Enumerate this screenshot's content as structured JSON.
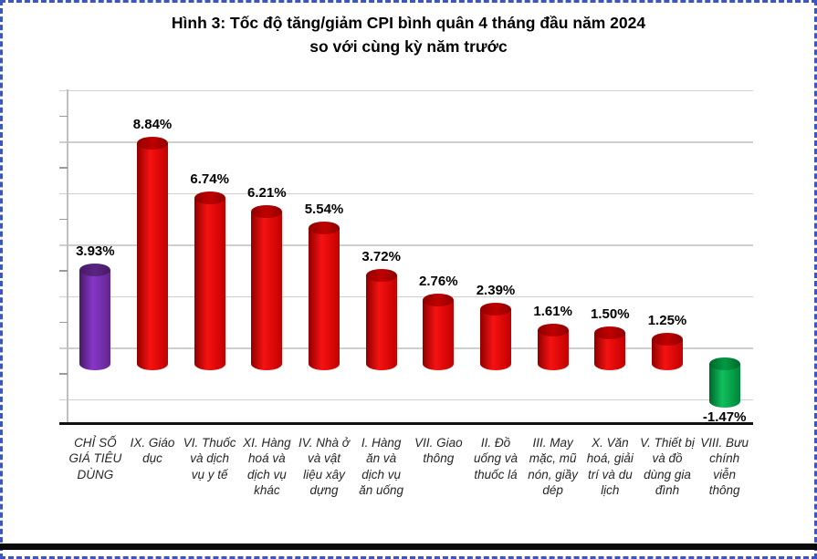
{
  "title": {
    "line1": "Hình 3: Tốc độ tăng/giảm CPI bình quân 4 tháng đầu năm 2024",
    "line2": "so với cùng kỳ năm trước"
  },
  "chart_data": {
    "type": "bar",
    "style": "3d-cylinder-columns",
    "title": "Hình 3: Tốc độ tăng/giảm CPI bình quân 4 tháng đầu năm 2024 so với cùng kỳ năm trước",
    "xlabel": "",
    "ylabel": "",
    "yaxis_numeric_labels": "none",
    "legend": "none",
    "grid": "horizontal-major",
    "gridline_step_pct": 2,
    "ylim": [
      -2.3,
      10.7
    ],
    "categories": [
      "CHỈ SỐ GIÁ TIÊU DÙNG",
      "IX. Giáo dục",
      "VI. Thuốc và dịch vụ y tế",
      "XI. Hàng hoá và dịch vụ khác",
      "IV. Nhà ở và vật liệu xây dựng",
      "I. Hàng ăn và dịch vụ ăn uống",
      "VII. Giao thông",
      "II. Đồ uống và thuốc lá",
      "III. May mặc, mũ nón, giầy dép",
      "X. Văn hoá, giải trí và du lịch",
      "V. Thiết bị và đồ dùng gia đình",
      "VIII. Bưu chính viễn thông"
    ],
    "values": [
      3.93,
      8.84,
      6.74,
      6.21,
      5.54,
      3.72,
      2.76,
      2.39,
      1.61,
      1.5,
      1.25,
      -1.47
    ],
    "value_labels": [
      "3.93%",
      "8.84%",
      "6.74%",
      "6.21%",
      "5.54%",
      "3.72%",
      "2.76%",
      "2.39%",
      "1.61%",
      "1.50%",
      "1.25%",
      "-1.47%"
    ],
    "bar_color_keys": [
      "purple",
      "red",
      "red",
      "red",
      "red",
      "red",
      "red",
      "red",
      "red",
      "red",
      "red",
      "green"
    ],
    "palette": {
      "purple": {
        "cap": "#5b2483",
        "edge": "#471a66",
        "mid": "#8737c7",
        "edge2": "#63258f"
      },
      "red": {
        "cap": "#c00000",
        "edge": "#8f0000",
        "mid": "#f51212",
        "edge2": "#c30000"
      },
      "green": {
        "cap": "#009b43",
        "edge": "#00662a",
        "mid": "#10bf5e",
        "edge2": "#008538"
      }
    }
  }
}
